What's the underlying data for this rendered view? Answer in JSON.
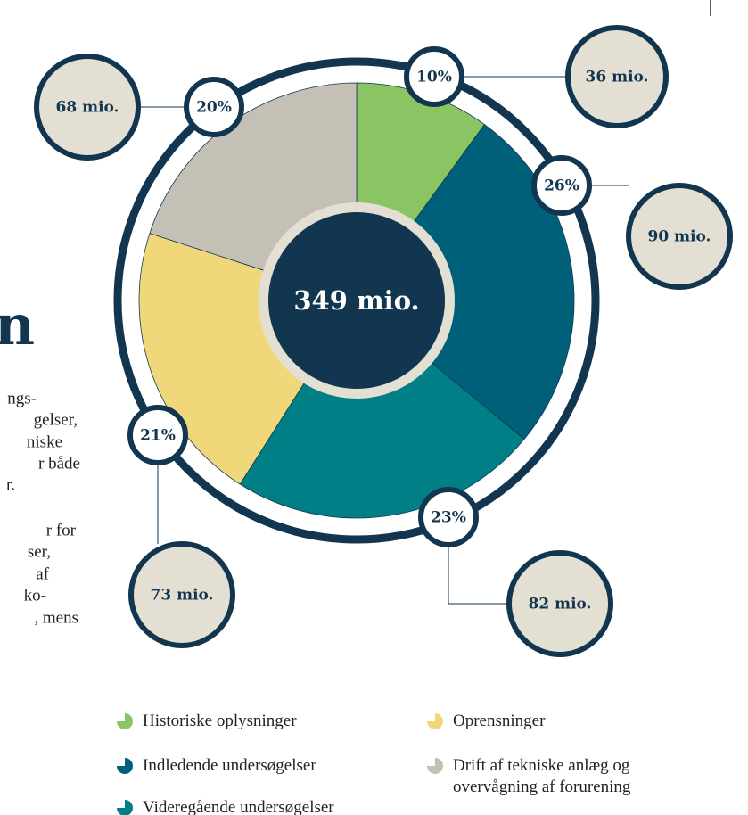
{
  "chart_data": {
    "type": "pie",
    "categories": [
      "Historiske oplysninger",
      "Indledende undersøgelser",
      "Videregående undersøgelser",
      "Oprensninger",
      "Drift af tekniske anlæg og overvågning af forurening"
    ],
    "values": [
      10,
      26,
      23,
      21,
      20
    ],
    "value_labels": [
      "10%",
      "26%",
      "23%",
      "21%",
      "20%"
    ],
    "amounts": [
      36,
      90,
      82,
      73,
      68
    ],
    "amount_labels": [
      "36 mio.",
      "90 mio.",
      "82 mio.",
      "73 mio.",
      "68 mio."
    ],
    "colors": [
      "#8bc462",
      "#00607a",
      "#007f86",
      "#f0d87a",
      "#c4c0b6"
    ],
    "total": 349,
    "total_label": "349 mio."
  },
  "side_text": {
    "heading": "n",
    "lines": [
      "ngs-",
      "gelser,",
      "niske",
      "r både",
      "r.",
      "r for",
      "ser,",
      "af",
      "ko-",
      ", mens"
    ]
  }
}
